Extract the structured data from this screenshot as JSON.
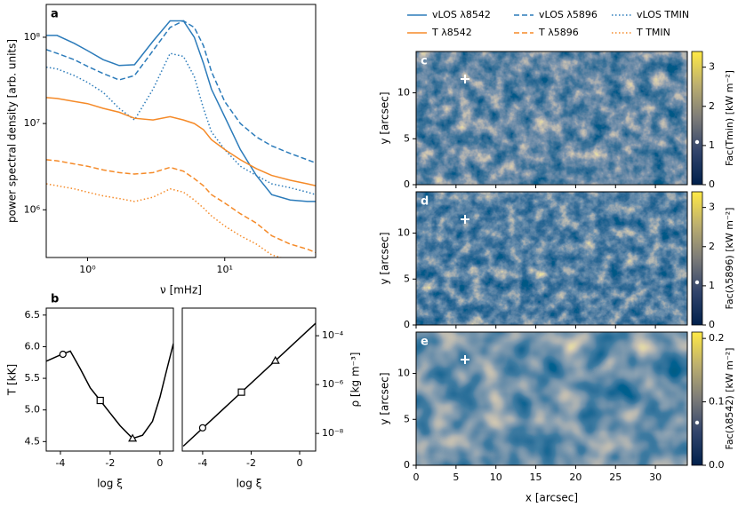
{
  "chart_data": [
    {
      "type": "line",
      "label": "a",
      "xlog": true,
      "ylog": true,
      "xlim": [
        0.5,
        46
      ],
      "ylim": [
        280000,
        240000000
      ],
      "xticks": [
        {
          "value": 1,
          "label": "10⁰"
        },
        {
          "value": 10,
          "label": "10¹"
        }
      ],
      "yticks": [
        {
          "value": 1000000,
          "label": "10⁶"
        },
        {
          "value": 10000000,
          "label": "10⁷"
        },
        {
          "value": 100000000,
          "label": "10⁸"
        }
      ],
      "xlabel": "ν [mHz]",
      "ylabel": "power spectral density [arb. units]",
      "legend": "top",
      "x": [
        0.5,
        0.6,
        0.8,
        1.0,
        1.3,
        1.7,
        2.2,
        3,
        4,
        5,
        6,
        7,
        8,
        10,
        13,
        17,
        22,
        30,
        40,
        46
      ],
      "series": [
        {
          "name": "vLOS λ8542",
          "color": "#2b7bba",
          "style": "solid",
          "values": [
            105000000,
            105000000,
            85000000,
            70000000,
            55000000,
            47000000,
            48000000,
            90000000,
            155000000,
            155000000,
            100000000,
            50000000,
            25000000,
            12000000,
            5000000,
            2500000,
            1500000,
            1300000,
            1250000,
            1250000
          ]
        },
        {
          "name": "vLOS λ5896",
          "color": "#2b7bba",
          "style": "dashed",
          "values": [
            72000000,
            65000000,
            55000000,
            46000000,
            38000000,
            32000000,
            36000000,
            70000000,
            130000000,
            155000000,
            130000000,
            80000000,
            40000000,
            18000000,
            10000000,
            7000000,
            5500000,
            4500000,
            3800000,
            3500000
          ]
        },
        {
          "name": "vLOS TMIN",
          "color": "#2b7bba",
          "style": "dotted",
          "values": [
            45000000,
            43000000,
            36000000,
            30000000,
            23000000,
            15000000,
            11000000,
            25000000,
            65000000,
            60000000,
            35000000,
            15000000,
            8000000,
            5000000,
            3200000,
            2500000,
            2000000,
            1800000,
            1600000,
            1500000
          ]
        },
        {
          "name": "T λ8542",
          "color": "#f58a28",
          "style": "solid",
          "values": [
            20000000,
            19500000,
            18000000,
            17000000,
            15000000,
            13500000,
            11500000,
            11000000,
            12000000,
            11000000,
            10000000,
            8500000,
            6500000,
            5000000,
            3800000,
            3000000,
            2500000,
            2200000,
            2000000,
            1900000
          ]
        },
        {
          "name": "T λ5896",
          "color": "#f58a28",
          "style": "dashed",
          "values": [
            3800000,
            3700000,
            3400000,
            3200000,
            2900000,
            2700000,
            2600000,
            2700000,
            3100000,
            2800000,
            2300000,
            1900000,
            1500000,
            1200000,
            900000,
            700000,
            500000,
            400000,
            350000,
            320000
          ]
        },
        {
          "name": "T TMIN",
          "color": "#f58a28",
          "style": "dotted",
          "values": [
            2000000,
            1900000,
            1750000,
            1600000,
            1450000,
            1350000,
            1250000,
            1400000,
            1750000,
            1600000,
            1300000,
            1050000,
            850000,
            650000,
            500000,
            400000,
            300000,
            260000,
            230000,
            220000
          ]
        }
      ]
    },
    {
      "type": "line",
      "label": "b",
      "xlim": [
        -4.57,
        0.54
      ],
      "ylim": [
        4.35,
        6.61
      ],
      "xticks": [
        -4,
        -2,
        0
      ],
      "yticks": [
        {
          "value": 4.5,
          "label": "4.5"
        },
        {
          "value": 5.0,
          "label": "5.0"
        },
        {
          "value": 5.5,
          "label": "5.5"
        },
        {
          "value": 6.0,
          "label": "6.0"
        },
        {
          "value": 6.5,
          "label": "6.5"
        }
      ],
      "xlabel": "log ξ",
      "ylabel": "T [kK]",
      "x": [
        -4.57,
        -4,
        -3.6,
        -3.2,
        -2.8,
        -2.4,
        -2,
        -1.6,
        -1.1,
        -0.7,
        -0.3,
        0,
        0.25,
        0.54
      ],
      "series": [
        {
          "color": "#000000",
          "style": "solid",
          "values": [
            5.77,
            5.87,
            5.93,
            5.65,
            5.35,
            5.15,
            4.95,
            4.75,
            4.55,
            4.6,
            4.82,
            5.2,
            5.6,
            6.05
          ]
        }
      ],
      "markers": {
        "x": [
          -3.9,
          -2.4,
          -1.1
        ],
        "values": [
          5.88,
          5.15,
          4.55
        ],
        "shapes": [
          "circle",
          "square",
          "triangle"
        ]
      }
    },
    {
      "type": "line",
      "ylog": true,
      "yaxis_side": "right",
      "xlim": [
        -4.84,
        0.66
      ],
      "ylim": [
        1.9e-09,
        0.00135
      ],
      "xticks": [
        -4,
        -2,
        0
      ],
      "yticks": [
        {
          "value": 1e-08,
          "label": "10⁻⁸"
        },
        {
          "value": 1e-06,
          "label": "10⁻⁶"
        },
        {
          "value": 0.0001,
          "label": "10⁻⁴"
        }
      ],
      "xlabel": "log ξ",
      "ylabel": "ρ [kg m⁻³]",
      "x": [
        -4.8,
        0.67
      ],
      "series": [
        {
          "color": "#000000",
          "style": "solid",
          "values": [
            3e-09,
            0.00033
          ]
        }
      ],
      "markers": {
        "x": [
          -4,
          -2.4,
          -1
        ],
        "values": [
          1.7e-08,
          4.9e-07,
          9.6e-06
        ],
        "shapes": [
          "circle",
          "square",
          "triangle"
        ]
      }
    },
    {
      "type": "heatmap",
      "label": "c",
      "xlim": [
        0,
        34
      ],
      "ylim": [
        0,
        14.5
      ],
      "yticks": [
        0,
        5,
        10
      ],
      "ylabel": "y [arcsec]",
      "clim": [
        0,
        3.4
      ],
      "cticks": [
        0,
        1,
        2,
        3
      ],
      "clabel": "Fac(Tmin) [kW m⁻²]",
      "colormap": "cividis"
    },
    {
      "type": "heatmap",
      "label": "d",
      "xlim": [
        0,
        34
      ],
      "ylim": [
        0,
        14.5
      ],
      "yticks": [
        0,
        5,
        10
      ],
      "ylabel": "y [arcsec]",
      "clim": [
        0,
        3.4
      ],
      "cticks": [
        0,
        1,
        2,
        3
      ],
      "clabel": "Fac(λ5896) [kW m⁻²]",
      "colormap": "cividis"
    },
    {
      "type": "heatmap",
      "label": "e",
      "xlim": [
        0,
        34
      ],
      "ylim": [
        0,
        14.5
      ],
      "xticks": [
        0,
        5,
        10,
        15,
        20,
        25,
        30
      ],
      "yticks": [
        0,
        5,
        10
      ],
      "xlabel": "x [arcsec]",
      "ylabel": "y [arcsec]",
      "clim": [
        0,
        0.21
      ],
      "cticks": [
        {
          "value": 0,
          "label": "0.0"
        },
        {
          "value": 0.1,
          "label": "0.1"
        },
        {
          "value": 0.2,
          "label": "0.2"
        }
      ],
      "clabel": "Fac(λ8542) [kW m⁻²]",
      "colormap": "cividis"
    }
  ]
}
